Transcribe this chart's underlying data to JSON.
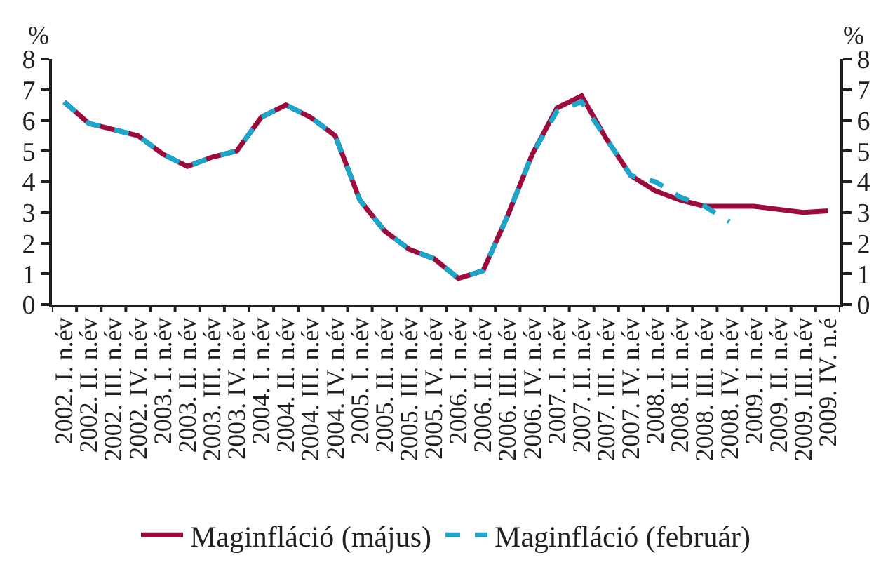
{
  "chart_data": {
    "type": "line",
    "ylabel": "%",
    "y2label": "%",
    "categories": [
      "2002. I. n.év",
      "2002. II. n.év",
      "2002. III. n.év",
      "2002. IV. n.év",
      "2003. I. n.év",
      "2003. II. n.év",
      "2003. III. n.év",
      "2003. IV. n.év",
      "2004. I. n.év",
      "2004. II. n.év",
      "2004. III. n.év",
      "2004. IV. n.év",
      "2005. I. n.év",
      "2005. II. n.év",
      "2005. III. n.év",
      "2005. IV. n.év",
      "2006. I. n.év",
      "2006. II. n.év",
      "2006. III. n.év",
      "2006. IV. n.év",
      "2007. I. n.év",
      "2007. II. n.év",
      "2007. III. n.év",
      "2007. IV. n.év",
      "2008. I. n.év",
      "2008. II. n.év",
      "2008. III. n.év",
      "2008. IV. n.év",
      "2009. I. n.év",
      "2009. II. n.év",
      "2009. III. n.év",
      "2009. IV. n.é"
    ],
    "series": [
      {
        "name": "Maginfláció (május)",
        "color": "#9c0b3b",
        "line_style": "solid",
        "values": [
          6.6,
          5.9,
          5.7,
          5.5,
          4.9,
          4.5,
          4.8,
          5.0,
          6.1,
          6.5,
          6.1,
          5.5,
          3.4,
          2.4,
          1.8,
          1.5,
          0.85,
          1.1,
          2.9,
          4.9,
          6.4,
          6.8,
          5.4,
          4.2,
          3.7,
          3.4,
          3.2,
          3.2,
          3.2,
          3.1,
          3.0,
          3.05
        ]
      },
      {
        "name": "Maginfláció (február)",
        "color": "#1aa7cc",
        "line_style": "dashed",
        "values": [
          6.6,
          5.9,
          5.7,
          5.5,
          4.9,
          4.5,
          4.8,
          5.0,
          6.1,
          6.5,
          6.1,
          5.5,
          3.4,
          2.4,
          1.8,
          1.5,
          0.85,
          1.1,
          2.9,
          4.9,
          6.3,
          6.6,
          5.4,
          4.2,
          4.0,
          3.5,
          3.2,
          2.7,
          null,
          null,
          null,
          null
        ]
      }
    ],
    "ylim": [
      0,
      8
    ],
    "yticks": [
      0,
      1,
      2,
      3,
      4,
      5,
      6,
      7,
      8
    ],
    "y2lim": [
      0,
      8
    ],
    "y2ticks": [
      0,
      1,
      2,
      3,
      4,
      5,
      6,
      7,
      8
    ],
    "legend": "bottom"
  }
}
